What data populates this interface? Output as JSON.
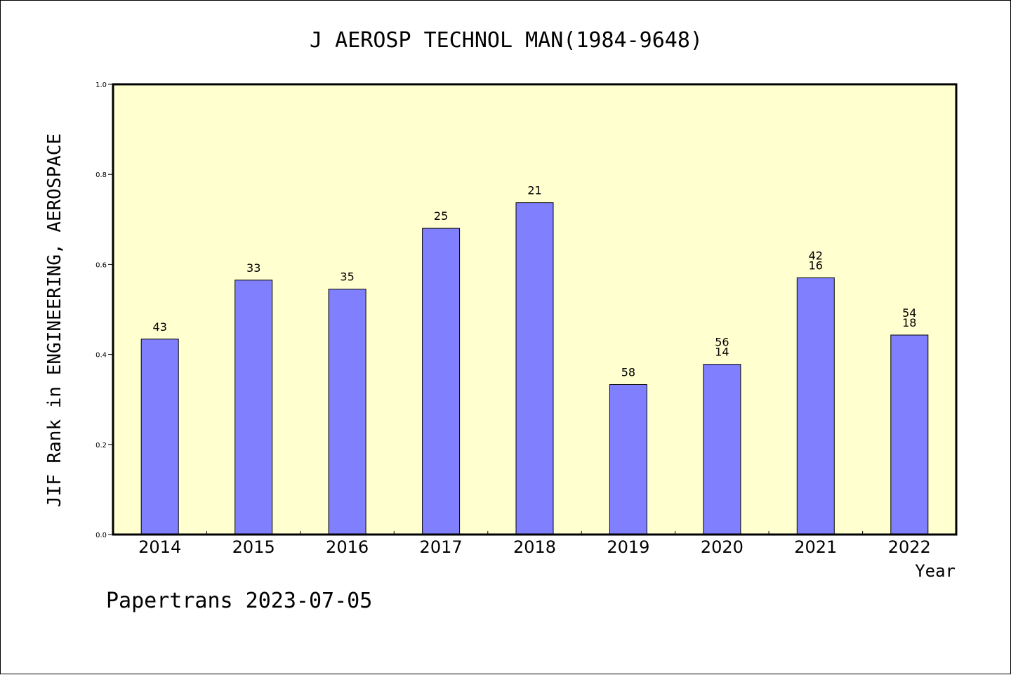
{
  "chart_data": {
    "type": "bar",
    "title": "J AEROSP TECHNOL MAN(1984-9648)",
    "ylabel": "JIF Rank in ENGINEERING, AEROSPACE",
    "xlabel": "Year",
    "categories": [
      "2014",
      "2015",
      "2016",
      "2017",
      "2018",
      "2019",
      "2020",
      "2021",
      "2022"
    ],
    "values": [
      0.434,
      0.565,
      0.545,
      0.68,
      0.737,
      0.333,
      0.378,
      0.57,
      0.443
    ],
    "labels": [
      [
        "43"
      ],
      [
        "33"
      ],
      [
        "35"
      ],
      [
        "25"
      ],
      [
        "21"
      ],
      [
        "58"
      ],
      [
        "56",
        "14"
      ],
      [
        "42",
        "16"
      ],
      [
        "54",
        "18"
      ]
    ],
    "ylim": [
      0,
      1.0
    ],
    "yticks": [
      "0.0",
      "0.2",
      "0.4",
      "0.6",
      "0.8",
      "1.0"
    ],
    "grid": false,
    "colors": {
      "bar": "#8080ff",
      "plot_background": "#ffffd0",
      "axis": "#000000"
    }
  },
  "footer": "Papertrans 2023-07-05"
}
